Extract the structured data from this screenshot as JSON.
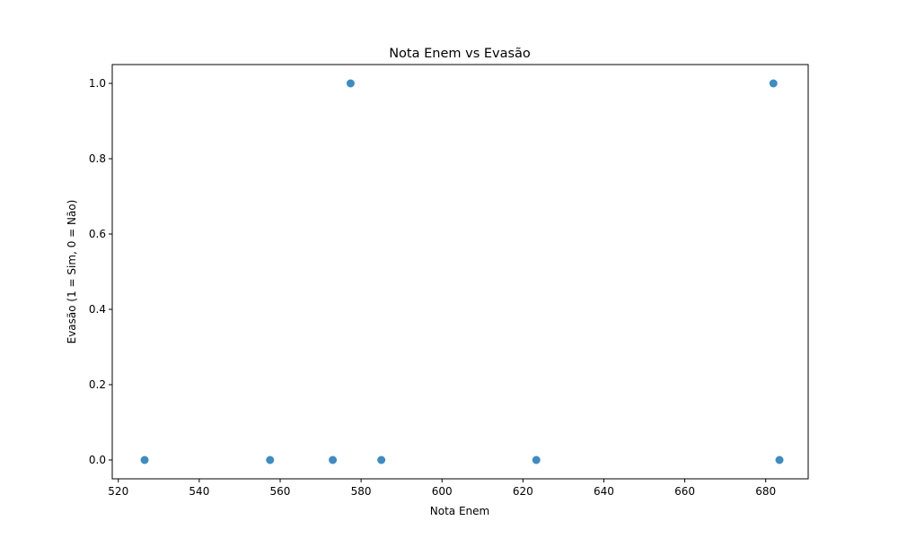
{
  "chart_data": {
    "type": "scatter",
    "title": "Nota Enem vs Evasão",
    "xlabel": "Nota Enem",
    "ylabel": "Evasão (1 = Sim, 0 = Não)",
    "xlim": [
      518.5,
      690.5
    ],
    "ylim": [
      -0.05,
      1.05
    ],
    "xticks": [
      520,
      540,
      560,
      580,
      600,
      620,
      640,
      660,
      680
    ],
    "yticks": [
      0.0,
      0.2,
      0.4,
      0.6,
      0.8,
      1.0
    ],
    "ytick_labels": [
      "0.0",
      "0.2",
      "0.4",
      "0.6",
      "0.8",
      "1.0"
    ],
    "grid": false,
    "marker_color": "#1f77b4",
    "points": [
      {
        "x": 526.5,
        "y": 0
      },
      {
        "x": 557.5,
        "y": 0
      },
      {
        "x": 573.0,
        "y": 0
      },
      {
        "x": 585.0,
        "y": 0
      },
      {
        "x": 623.3,
        "y": 0
      },
      {
        "x": 683.4,
        "y": 0
      },
      {
        "x": 577.4,
        "y": 1
      },
      {
        "x": 681.9,
        "y": 1
      }
    ]
  }
}
